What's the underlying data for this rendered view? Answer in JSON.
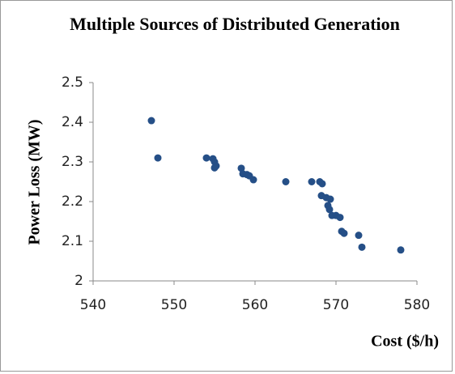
{
  "chart_data": {
    "type": "scatter",
    "title": "Multiple Sources of Distributed Generation",
    "xlabel": "Cost ($/h)",
    "ylabel": "Power Loss (MW)",
    "color": "#254f87",
    "grid": false,
    "xlim": [
      540,
      580
    ],
    "xticks": [
      540,
      550,
      560,
      570,
      580
    ],
    "ylim": [
      2,
      2.5
    ],
    "yticks": [
      2,
      2.1,
      2.2,
      2.3,
      2.4,
      2.5
    ],
    "x": [
      547.2,
      548.0,
      554.0,
      554.8,
      555.0,
      555.2,
      555.0,
      558.3,
      558.5,
      559.0,
      559.3,
      559.8,
      563.8,
      567.0,
      568.0,
      568.3,
      568.2,
      568.8,
      569.3,
      569.0,
      569.2,
      569.5,
      570.0,
      570.5,
      570.7,
      571.0,
      572.8,
      573.2,
      578.0
    ],
    "values": [
      2.404,
      2.31,
      2.31,
      2.308,
      2.3,
      2.29,
      2.285,
      2.284,
      2.27,
      2.268,
      2.265,
      2.255,
      2.25,
      2.25,
      2.25,
      2.245,
      2.215,
      2.21,
      2.206,
      2.19,
      2.18,
      2.165,
      2.165,
      2.16,
      2.125,
      2.12,
      2.115,
      2.085,
      2.078
    ]
  }
}
